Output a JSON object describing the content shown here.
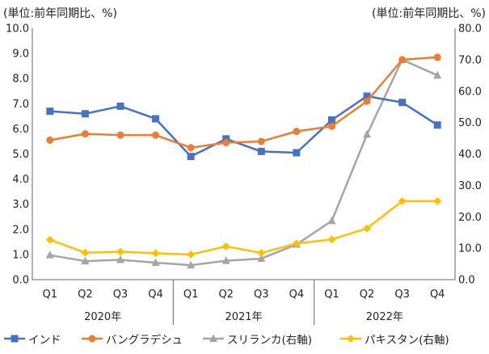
{
  "chart_data": {
    "type": "line",
    "title": "",
    "left_axis_label": "(単位:前年同期比、%)",
    "right_axis_label": "(単位:前年同期比、%)",
    "left_ylim": [
      0,
      10
    ],
    "left_yticks": [
      "0.0",
      "1.0",
      "2.0",
      "3.0",
      "4.0",
      "5.0",
      "6.0",
      "7.0",
      "8.0",
      "9.0",
      "10.0"
    ],
    "right_ylim": [
      0,
      80
    ],
    "right_yticks": [
      "0.0",
      "10.0",
      "20.0",
      "30.0",
      "40.0",
      "50.0",
      "60.0",
      "70.0",
      "80.0"
    ],
    "categories": [
      "Q1",
      "Q2",
      "Q3",
      "Q4",
      "Q1",
      "Q2",
      "Q3",
      "Q4",
      "Q1",
      "Q2",
      "Q3",
      "Q4"
    ],
    "years": [
      "2020年",
      "2021年",
      "2022年"
    ],
    "series": [
      {
        "name": "インド",
        "axis": "left",
        "color": "#4472C4",
        "marker": "square",
        "values": [
          6.7,
          6.6,
          6.9,
          6.4,
          4.9,
          5.6,
          5.1,
          5.05,
          6.35,
          7.3,
          7.05,
          6.15
        ]
      },
      {
        "name": "バングラデシュ",
        "axis": "left",
        "color": "#ED7D31",
        "marker": "circle",
        "values": [
          5.55,
          5.8,
          5.75,
          5.75,
          5.25,
          5.45,
          5.5,
          5.9,
          6.1,
          7.1,
          8.75,
          8.85
        ]
      },
      {
        "name": "スリランカ(右軸)",
        "axis": "right",
        "color": "#A5A5A5",
        "marker": "triangle",
        "values": [
          7.8,
          5.9,
          6.3,
          5.4,
          4.6,
          6.0,
          6.7,
          11.2,
          18.7,
          46.2,
          70.0,
          65.0
        ]
      },
      {
        "name": "パキスタン(右軸)",
        "axis": "right",
        "color": "#FFC000",
        "marker": "diamond",
        "values": [
          12.7,
          8.6,
          8.9,
          8.4,
          8.0,
          10.6,
          8.5,
          11.5,
          12.8,
          16.3,
          25.0,
          25.0
        ]
      }
    ]
  }
}
